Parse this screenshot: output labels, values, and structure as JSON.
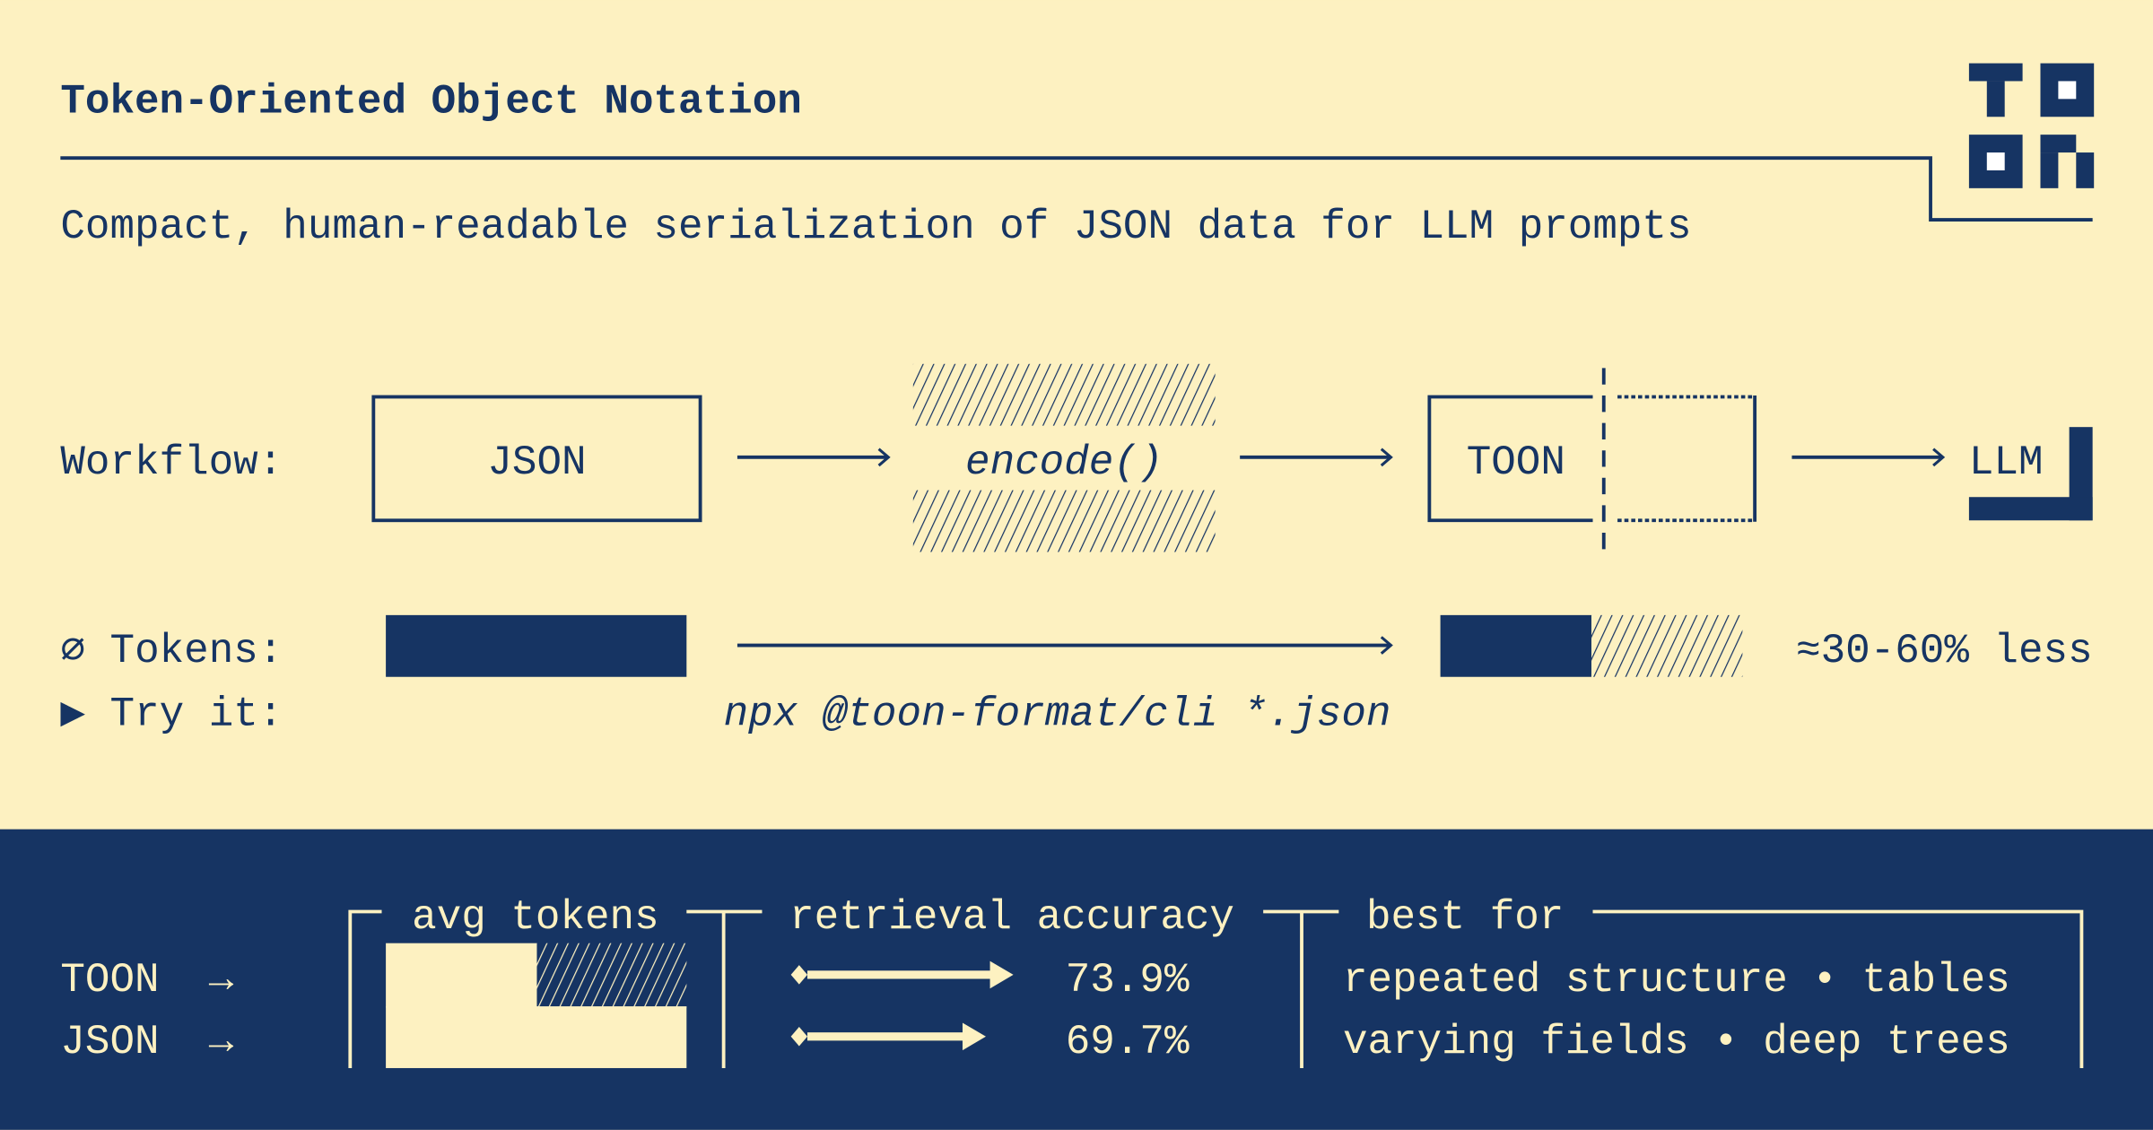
{
  "colors": {
    "background": "#fdf1c1",
    "navy": "#163463",
    "logo_hole": "#ffffff"
  },
  "header": {
    "title": "Token-Oriented Object Notation",
    "subtitle": "Compact, human-readable serialization of JSON data for LLM prompts",
    "logo": "TOON"
  },
  "workflow": {
    "label": "Workflow:",
    "steps": [
      "JSON",
      "encode()",
      "TOON",
      "LLM"
    ]
  },
  "tokens": {
    "label": "⌀ Tokens:",
    "savings": "≈30-60% less"
  },
  "try_it": {
    "label": "▶ Try it:",
    "command": "npx @toon-format/cli *.json"
  },
  "comparison": {
    "rows": [
      {
        "format": "TOON",
        "arrow": "→",
        "accuracy": "73.9%",
        "accuracy_value": 73.9
      },
      {
        "format": "JSON",
        "arrow": "→",
        "accuracy": "69.7%",
        "accuracy_value": 69.7
      }
    ],
    "avg_tokens_header": "avg tokens",
    "accuracy_header": "retrieval accuracy",
    "best_for_header": "best for",
    "best_for": [
      "repeated structure • tables",
      "varying fields • deep trees"
    ]
  }
}
